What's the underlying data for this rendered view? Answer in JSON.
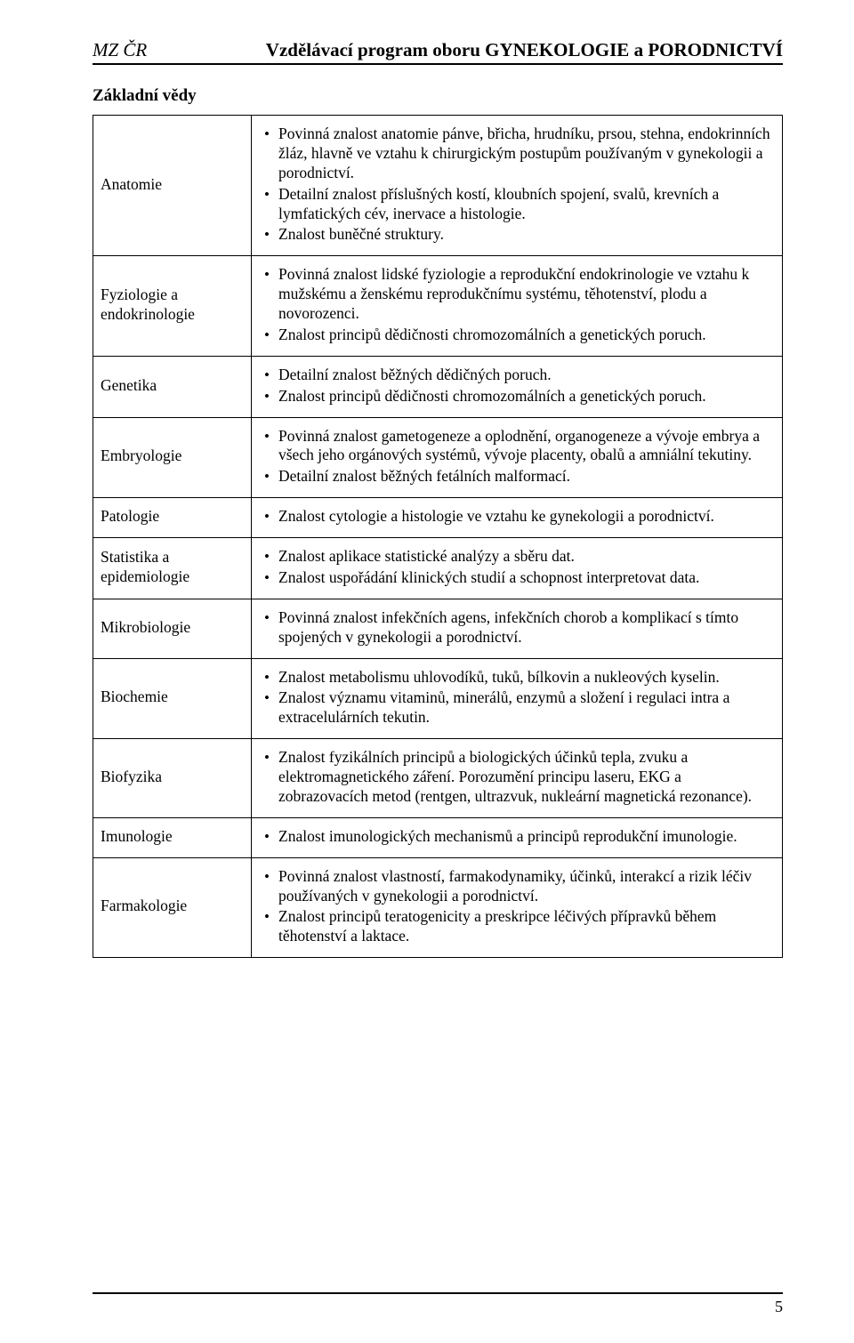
{
  "header": {
    "left": "MZ ČR",
    "right": "Vzdělávací program oboru GYNEKOLOGIE a PORODNICTVÍ"
  },
  "section_title": "Základní vědy",
  "page_number": "5",
  "rows": [
    {
      "label": "Anatomie",
      "bullets": [
        "Povinná znalost anatomie pánve, břicha, hrudníku, prsou, stehna, endokrinních žláz, hlavně ve vztahu k chirurgickým postupům používaným v gynekologii a porodnictví.",
        "Detailní znalost příslušných kostí, kloubních spojení, svalů, krevních a lymfatických cév, inervace a histologie.",
        "Znalost buněčné struktury."
      ]
    },
    {
      "label": "Fyziologie a endokrinologie",
      "bullets": [
        "Povinná znalost lidské fyziologie a reprodukční endokrinologie ve vztahu k mužskému a ženskému reprodukčnímu systému, těhotenství, plodu a novorozenci.",
        "Znalost principů dědičnosti chromozomálních a genetických poruch."
      ]
    },
    {
      "label": "Genetika",
      "bullets": [
        "Detailní znalost běžných dědičných poruch.",
        "Znalost principů dědičnosti chromozomálních a genetických poruch."
      ]
    },
    {
      "label": "Embryologie",
      "bullets": [
        "Povinná znalost gametogeneze a oplodnění, organogeneze a vývoje embrya a všech jeho orgánových systémů, vývoje placenty, obalů a amniální tekutiny.",
        "Detailní znalost běžných fetálních malformací."
      ]
    },
    {
      "label": "Patologie",
      "bullets": [
        "Znalost cytologie a histologie ve vztahu ke gynekologii a porodnictví."
      ]
    },
    {
      "label": "Statistika a epidemiologie",
      "bullets": [
        "Znalost aplikace statistické analýzy a sběru dat.",
        "Znalost uspořádání klinických studií a schopnost interpretovat data."
      ]
    },
    {
      "label": "Mikrobiologie",
      "bullets": [
        "Povinná znalost infekčních agens, infekčních chorob a komplikací s tímto spojených v gynekologii a porodnictví."
      ]
    },
    {
      "label": "Biochemie",
      "bullets": [
        "Znalost metabolismu uhlovodíků, tuků, bílkovin a nukleových kyselin.",
        "Znalost významu vitaminů, minerálů, enzymů a složení i regulaci intra a extracelulárních tekutin."
      ]
    },
    {
      "label": "Biofyzika",
      "bullets": [
        "Znalost fyzikálních principů a biologických účinků tepla, zvuku a elektromagnetického záření. Porozumění principu laseru, EKG a zobrazovacích metod (rentgen, ultrazvuk, nukleární magnetická rezonance)."
      ]
    },
    {
      "label": "Imunologie",
      "bullets": [
        "Znalost imunologických mechanismů a principů reprodukční imunologie."
      ]
    },
    {
      "label": "Farmakologie",
      "bullets": [
        "Povinná znalost vlastností, farmakodynamiky, účinků, interakcí a rizik léčiv používaných v gynekologii a porodnictví.",
        "Znalost principů teratogenicity a preskripce léčivých přípravků během těhotenství a laktace."
      ]
    }
  ]
}
